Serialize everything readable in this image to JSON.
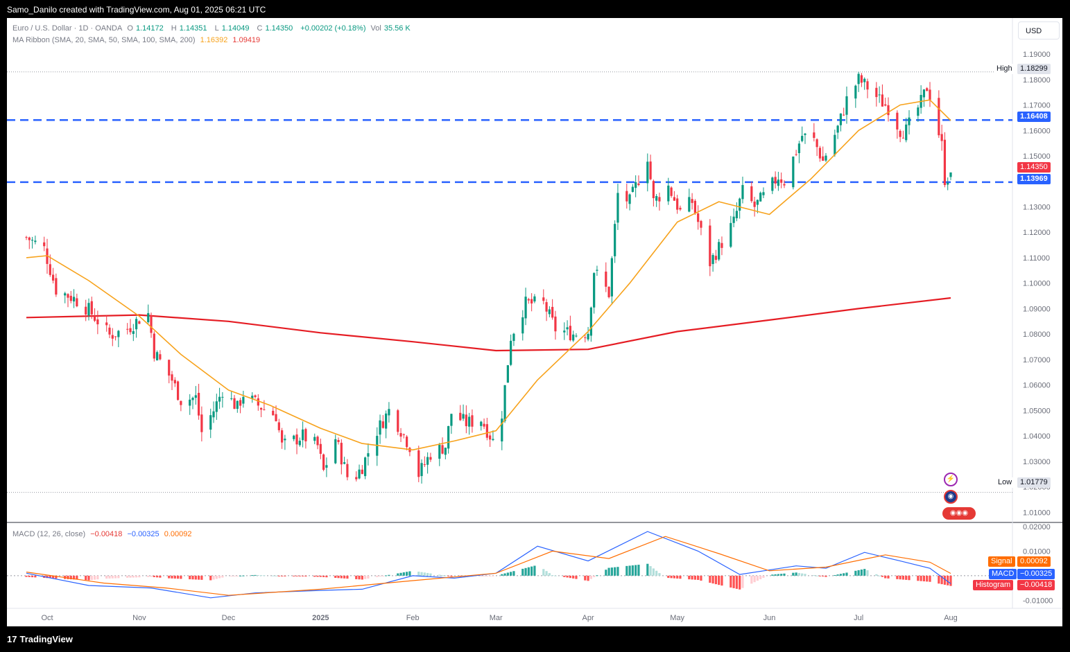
{
  "header": {
    "credit": "Samo_Danilo created with TradingView.com, Aug 01, 2025 06:21 UTC"
  },
  "legend": {
    "symbol": "Euro / U.S. Dollar · 1D · OANDA",
    "o_label": "O",
    "o": "1.14172",
    "h_label": "H",
    "h": "1.14351",
    "l_label": "L",
    "l": "1.14049",
    "c_label": "C",
    "c": "1.14350",
    "change": "+0.00202 (+0.18%)",
    "vol_label": "Vol",
    "vol": "35.56 K",
    "ma_name": "MA Ribbon (SMA, 20, SMA, 50, SMA, 100, SMA, 200)",
    "ma20_value": "1.16392",
    "ma200_value": "1.09419"
  },
  "currency_button": "USD",
  "price_tags": {
    "high_label": "High",
    "high_value": "1.18299",
    "low_label": "Low",
    "low_value": "1.01779",
    "resistance": "1.16408",
    "last_price": "1.14350",
    "support": "1.13969"
  },
  "macd_legend": {
    "name": "MACD (12, 26, close)",
    "histogram": "−0.00418",
    "macd": "−0.00325",
    "signal": "0.00092"
  },
  "macd_tags": {
    "signal_label": "Signal",
    "signal_value": "0.00092",
    "macd_label": "MACD",
    "macd_value": "−0.00325",
    "hist_label": "Histogram",
    "hist_value": "−0.00418"
  },
  "footer": {
    "brand": "TradingView",
    "logo_text": "17"
  },
  "events": {
    "flash_icon": "⚡",
    "globe_icon": "◉",
    "flags_icon": "◉◉◉"
  },
  "colors": {
    "up": "#089981",
    "down": "#f23645",
    "ma20": "#f7a21b",
    "ma200": "#e51c23",
    "hline": "#2962ff",
    "macd_line": "#2962ff",
    "signal_line": "#ff6d00"
  },
  "chart_data": [
    {
      "type": "candlestick",
      "symbol": "EURUSD",
      "timeframe": "1D",
      "y_axis_ticks": [
        "1.19000",
        "1.18000",
        "1.17000",
        "1.16000",
        "1.15000",
        "1.14000",
        "1.13000",
        "1.12000",
        "1.11000",
        "1.10000",
        "1.09000",
        "1.08000",
        "1.07000",
        "1.06000",
        "1.05000",
        "1.04000",
        "1.03000",
        "1.02000",
        "1.01000"
      ],
      "ylim": [
        1.006,
        1.196
      ],
      "x_tick_labels": [
        "Oct",
        "Nov",
        "Dec",
        "2025",
        "Feb",
        "Mar",
        "Apr",
        "May",
        "Jun",
        "Jul",
        "Aug"
      ],
      "x_tick_dates": [
        "2024-10-01",
        "2024-11-01",
        "2024-12-01",
        "2025-01-01",
        "2025-02-01",
        "2025-03-01",
        "2025-04-01",
        "2025-05-01",
        "2025-06-01",
        "2025-07-01",
        "2025-08-01"
      ],
      "horizontal_lines": [
        1.16408,
        1.13969
      ],
      "high": 1.18299,
      "low": 1.01779,
      "close_path": [
        [
          "2024-09-24",
          1.118
        ],
        [
          "2024-09-30",
          1.1135
        ],
        [
          "2024-10-04",
          1.0975
        ],
        [
          "2024-10-10",
          1.094
        ],
        [
          "2024-10-15",
          1.0895
        ],
        [
          "2024-10-22",
          1.0795
        ],
        [
          "2024-10-28",
          1.082
        ],
        [
          "2024-11-01",
          1.086
        ],
        [
          "2024-11-04",
          1.088
        ],
        [
          "2024-11-06",
          1.073
        ],
        [
          "2024-11-12",
          1.062
        ],
        [
          "2024-11-15",
          1.054
        ],
        [
          "2024-11-20",
          1.055
        ],
        [
          "2024-11-22",
          1.0415
        ],
        [
          "2024-11-26",
          1.05
        ],
        [
          "2024-11-29",
          1.058
        ],
        [
          "2024-12-04",
          1.051
        ],
        [
          "2024-12-06",
          1.0565
        ],
        [
          "2024-12-11",
          1.052
        ],
        [
          "2024-12-17",
          1.048
        ],
        [
          "2024-12-19",
          1.036
        ],
        [
          "2024-12-26",
          1.04
        ],
        [
          "2024-12-31",
          1.036
        ],
        [
          "2025-01-02",
          1.026
        ],
        [
          "2025-01-06",
          1.039
        ],
        [
          "2025-01-10",
          1.024
        ],
        [
          "2025-01-13",
          1.0245
        ],
        [
          "2025-01-15",
          1.028
        ],
        [
          "2025-01-20",
          1.042
        ],
        [
          "2025-01-24",
          1.05
        ],
        [
          "2025-01-27",
          1.0445
        ],
        [
          "2025-01-31",
          1.036
        ],
        [
          "2025-02-03",
          1.025
        ],
        [
          "2025-02-07",
          1.033
        ],
        [
          "2025-02-12",
          1.036
        ],
        [
          "2025-02-14",
          1.049
        ],
        [
          "2025-02-19",
          1.045
        ],
        [
          "2025-02-24",
          1.0465
        ],
        [
          "2025-02-28",
          1.038
        ],
        [
          "2025-03-03",
          1.049
        ],
        [
          "2025-03-06",
          1.079
        ],
        [
          "2025-03-11",
          1.092
        ],
        [
          "2025-03-17",
          1.092
        ],
        [
          "2025-03-21",
          1.082
        ],
        [
          "2025-03-27",
          1.08
        ],
        [
          "2025-04-01",
          1.081
        ],
        [
          "2025-04-03",
          1.105
        ],
        [
          "2025-04-08",
          1.096
        ],
        [
          "2025-04-11",
          1.135
        ],
        [
          "2025-04-15",
          1.132
        ],
        [
          "2025-04-21",
          1.15
        ],
        [
          "2025-04-23",
          1.132
        ],
        [
          "2025-04-28",
          1.138
        ],
        [
          "2025-05-02",
          1.128
        ],
        [
          "2025-05-06",
          1.132
        ],
        [
          "2025-05-12",
          1.108
        ],
        [
          "2025-05-16",
          1.116
        ],
        [
          "2025-05-20",
          1.124
        ],
        [
          "2025-05-23",
          1.136
        ],
        [
          "2025-05-27",
          1.13
        ],
        [
          "2025-05-30",
          1.134
        ],
        [
          "2025-06-04",
          1.142
        ],
        [
          "2025-06-06",
          1.14
        ],
        [
          "2025-06-12",
          1.158
        ],
        [
          "2025-06-16",
          1.156
        ],
        [
          "2025-06-19",
          1.148
        ],
        [
          "2025-06-24",
          1.161
        ],
        [
          "2025-06-27",
          1.172
        ],
        [
          "2025-07-01",
          1.18
        ],
        [
          "2025-07-04",
          1.177
        ],
        [
          "2025-07-08",
          1.172
        ],
        [
          "2025-07-11",
          1.169
        ],
        [
          "2025-07-15",
          1.16
        ],
        [
          "2025-07-17",
          1.16
        ],
        [
          "2025-07-22",
          1.171
        ],
        [
          "2025-07-24",
          1.177
        ],
        [
          "2025-07-25",
          1.174
        ],
        [
          "2025-07-28",
          1.159
        ],
        [
          "2025-07-29",
          1.154
        ],
        [
          "2025-07-30",
          1.141
        ],
        [
          "2025-07-31",
          1.1415
        ],
        [
          "2025-08-01",
          1.1435
        ]
      ],
      "last_candle": {
        "date": "2025-08-01",
        "open": 1.14172,
        "high": 1.14351,
        "low": 1.14049,
        "close": 1.1435
      },
      "series": [
        {
          "name": "SMA 20",
          "points": [
            [
              "2024-09-24",
              1.11
            ],
            [
              "2024-10-01",
              1.1108
            ],
            [
              "2024-10-15",
              1.101
            ],
            [
              "2024-11-01",
              1.087
            ],
            [
              "2024-11-15",
              1.072
            ],
            [
              "2024-12-01",
              1.058
            ],
            [
              "2024-12-15",
              1.052
            ],
            [
              "2025-01-01",
              1.043
            ],
            [
              "2025-01-15",
              1.037
            ],
            [
              "2025-02-01",
              1.0345
            ],
            [
              "2025-02-15",
              1.038
            ],
            [
              "2025-03-01",
              1.042
            ],
            [
              "2025-03-15",
              1.062
            ],
            [
              "2025-04-01",
              1.081
            ],
            [
              "2025-04-15",
              1.1
            ],
            [
              "2025-05-01",
              1.124
            ],
            [
              "2025-05-15",
              1.132
            ],
            [
              "2025-06-01",
              1.127
            ],
            [
              "2025-06-15",
              1.141
            ],
            [
              "2025-07-01",
              1.16
            ],
            [
              "2025-07-15",
              1.17
            ],
            [
              "2025-07-25",
              1.172
            ],
            [
              "2025-08-01",
              1.16392
            ]
          ]
        },
        {
          "name": "SMA 200",
          "points": [
            [
              "2024-09-24",
              1.0865
            ],
            [
              "2024-11-01",
              1.0875
            ],
            [
              "2024-12-01",
              1.085
            ],
            [
              "2025-01-01",
              1.0805
            ],
            [
              "2025-02-01",
              1.077
            ],
            [
              "2025-03-01",
              1.0735
            ],
            [
              "2025-04-01",
              1.074
            ],
            [
              "2025-05-01",
              1.081
            ],
            [
              "2025-06-01",
              1.0855
            ],
            [
              "2025-07-01",
              1.09
            ],
            [
              "2025-08-01",
              1.09419
            ]
          ]
        }
      ]
    },
    {
      "type": "line",
      "name": "MACD (12, 26, close)",
      "y_axis_ticks": [
        "0.02000",
        "0.01000",
        "-0.01000"
      ],
      "ylim": [
        -0.0133,
        0.02
      ],
      "series": [
        {
          "name": "MACD",
          "points": [
            [
              "2024-09-24",
              0.001
            ],
            [
              "2024-10-15",
              -0.004
            ],
            [
              "2024-11-05",
              -0.005
            ],
            [
              "2024-11-25",
              -0.009
            ],
            [
              "2024-12-10",
              -0.007
            ],
            [
              "2025-01-01",
              -0.006
            ],
            [
              "2025-01-15",
              -0.0055
            ],
            [
              "2025-02-01",
              0.0
            ],
            [
              "2025-02-15",
              -0.001
            ],
            [
              "2025-03-01",
              0.001
            ],
            [
              "2025-03-15",
              0.012
            ],
            [
              "2025-04-01",
              0.006
            ],
            [
              "2025-04-21",
              0.018
            ],
            [
              "2025-05-08",
              0.01
            ],
            [
              "2025-05-22",
              0.0005
            ],
            [
              "2025-06-10",
              0.004
            ],
            [
              "2025-06-20",
              0.003
            ],
            [
              "2025-07-03",
              0.0095
            ],
            [
              "2025-07-15",
              0.006
            ],
            [
              "2025-07-25",
              0.003
            ],
            [
              "2025-08-01",
              -0.00325
            ]
          ]
        },
        {
          "name": "Signal",
          "points": [
            [
              "2024-09-24",
              0.0015
            ],
            [
              "2024-10-20",
              -0.003
            ],
            [
              "2024-11-10",
              -0.005
            ],
            [
              "2024-12-01",
              -0.008
            ],
            [
              "2025-01-01",
              -0.0055
            ],
            [
              "2025-02-01",
              -0.002
            ],
            [
              "2025-03-01",
              0.001
            ],
            [
              "2025-03-20",
              0.01
            ],
            [
              "2025-04-08",
              0.007
            ],
            [
              "2025-04-27",
              0.016
            ],
            [
              "2025-05-15",
              0.009
            ],
            [
              "2025-06-01",
              0.002
            ],
            [
              "2025-06-20",
              0.0035
            ],
            [
              "2025-07-10",
              0.0085
            ],
            [
              "2025-07-25",
              0.0055
            ],
            [
              "2025-08-01",
              0.00092
            ]
          ]
        }
      ]
    }
  ]
}
